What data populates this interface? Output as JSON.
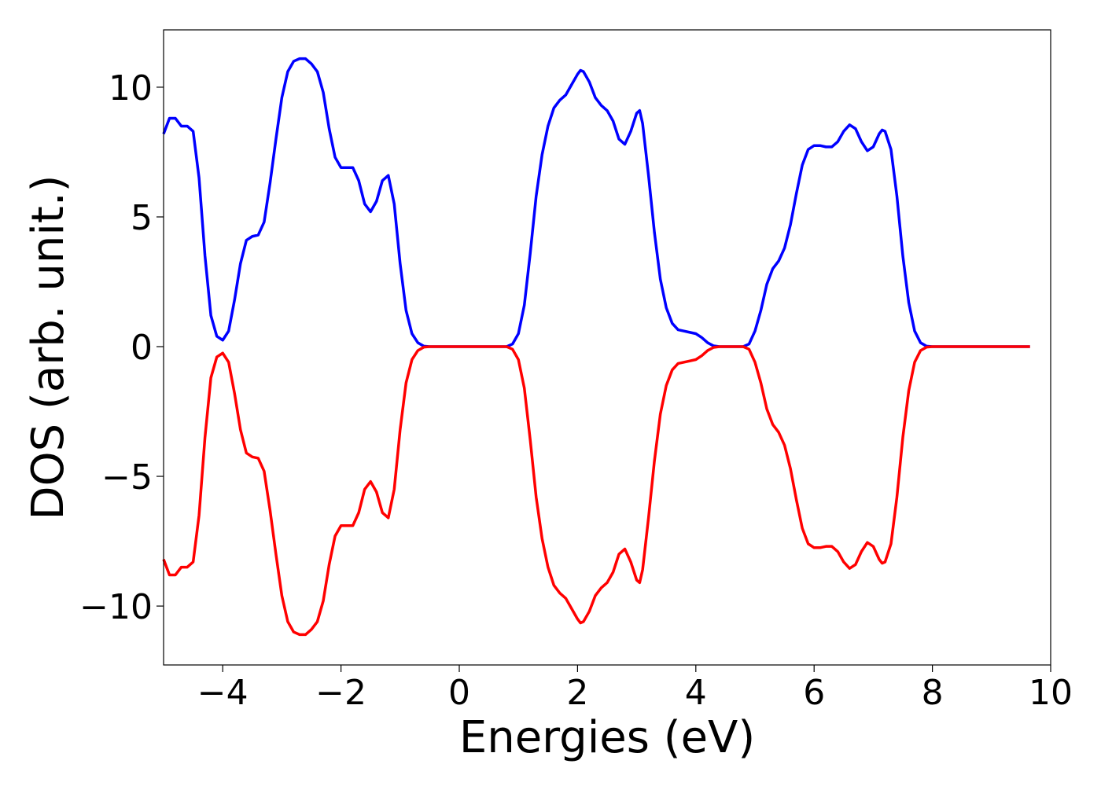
{
  "chart_data": {
    "type": "line",
    "xlabel": "Energies (eV)",
    "ylabel": "DOS (arb. unit.)",
    "x": [
      -5,
      -4.9,
      -4.8,
      -4.7,
      -4.6,
      -4.5,
      -4.4,
      -4.3,
      -4.2,
      -4.1,
      -4,
      -3.9,
      -3.8,
      -3.7,
      -3.6,
      -3.5,
      -3.4,
      -3.3,
      -3.2,
      -3.1,
      -3,
      -2.9,
      -2.8,
      -2.7,
      -2.6,
      -2.5,
      -2.4,
      -2.3,
      -2.2,
      -2.1,
      -2,
      -1.9,
      -1.8,
      -1.7,
      -1.6,
      -1.5,
      -1.4,
      -1.3,
      -1.2,
      -1.1,
      -1,
      -0.9,
      -0.8,
      -0.7,
      -0.6,
      -0.5,
      0.8,
      0.9,
      1,
      1.1,
      1.2,
      1.3,
      1.4,
      1.5,
      1.6,
      1.7,
      1.8,
      1.9,
      2,
      2.05,
      2.1,
      2.2,
      2.3,
      2.4,
      2.5,
      2.6,
      2.7,
      2.8,
      2.9,
      3,
      3.05,
      3.1,
      3.2,
      3.3,
      3.4,
      3.5,
      3.6,
      3.7,
      3.8,
      3.9,
      4,
      4.1,
      4.2,
      4.3,
      4.4,
      4.8,
      4.9,
      5,
      5.1,
      5.2,
      5.3,
      5.4,
      5.5,
      5.6,
      5.7,
      5.8,
      5.9,
      6,
      6.1,
      6.2,
      6.3,
      6.4,
      6.5,
      6.6,
      6.7,
      6.8,
      6.9,
      7,
      7.1,
      7.15,
      7.2,
      7.3,
      7.4,
      7.5,
      7.6,
      7.7,
      7.8,
      7.9,
      8,
      9.65
    ],
    "series": [
      {
        "color": "#0000ff",
        "values": [
          8.2,
          8.8,
          8.8,
          8.5,
          8.5,
          8.3,
          6.5,
          3.5,
          1.2,
          0.4,
          0.25,
          0.6,
          1.8,
          3.2,
          4.1,
          4.25,
          4.3,
          4.8,
          6.3,
          8,
          9.6,
          10.6,
          11,
          11.1,
          11.1,
          10.9,
          10.6,
          9.8,
          8.4,
          7.3,
          6.9,
          6.9,
          6.9,
          6.4,
          5.5,
          5.2,
          5.6,
          6.4,
          6.6,
          5.5,
          3.2,
          1.4,
          0.5,
          0.15,
          0.02,
          0,
          0,
          0.1,
          0.5,
          1.6,
          3.6,
          5.8,
          7.4,
          8.5,
          9.2,
          9.5,
          9.7,
          10.1,
          10.5,
          10.65,
          10.6,
          10.2,
          9.6,
          9.3,
          9.1,
          8.7,
          8,
          7.8,
          8.3,
          9,
          9.1,
          8.6,
          6.6,
          4.4,
          2.6,
          1.5,
          0.9,
          0.65,
          0.6,
          0.55,
          0.5,
          0.35,
          0.15,
          0.03,
          0,
          0,
          0.1,
          0.6,
          1.4,
          2.4,
          3,
          3.3,
          3.8,
          4.7,
          5.9,
          7,
          7.6,
          7.75,
          7.75,
          7.7,
          7.7,
          7.9,
          8.3,
          8.55,
          8.4,
          7.9,
          7.55,
          7.7,
          8.2,
          8.35,
          8.3,
          7.6,
          5.8,
          3.5,
          1.7,
          0.6,
          0.15,
          0.02,
          0,
          0
        ]
      },
      {
        "color": "#ff0000",
        "values": [
          -8.2,
          -8.8,
          -8.8,
          -8.5,
          -8.5,
          -8.3,
          -6.5,
          -3.5,
          -1.2,
          -0.4,
          -0.25,
          -0.6,
          -1.8,
          -3.2,
          -4.1,
          -4.25,
          -4.3,
          -4.8,
          -6.3,
          -8,
          -9.6,
          -10.6,
          -11,
          -11.1,
          -11.1,
          -10.9,
          -10.6,
          -9.8,
          -8.4,
          -7.3,
          -6.9,
          -6.9,
          -6.9,
          -6.4,
          -5.5,
          -5.2,
          -5.6,
          -6.4,
          -6.6,
          -5.5,
          -3.2,
          -1.4,
          -0.5,
          -0.15,
          -0.02,
          0,
          0,
          -0.1,
          -0.5,
          -1.6,
          -3.6,
          -5.8,
          -7.4,
          -8.5,
          -9.2,
          -9.5,
          -9.7,
          -10.1,
          -10.5,
          -10.65,
          -10.6,
          -10.2,
          -9.6,
          -9.3,
          -9.1,
          -8.7,
          -8,
          -7.8,
          -8.3,
          -9,
          -9.1,
          -8.6,
          -6.6,
          -4.4,
          -2.6,
          -1.5,
          -0.9,
          -0.65,
          -0.6,
          -0.55,
          -0.5,
          -0.35,
          -0.15,
          -0.03,
          0,
          0,
          -0.1,
          -0.6,
          -1.4,
          -2.4,
          -3,
          -3.3,
          -3.8,
          -4.7,
          -5.9,
          -7,
          -7.6,
          -7.75,
          -7.75,
          -7.7,
          -7.7,
          -7.9,
          -8.3,
          -8.55,
          -8.4,
          -7.9,
          -7.55,
          -7.7,
          -8.2,
          -8.35,
          -8.3,
          -7.6,
          -5.8,
          -3.5,
          -1.7,
          -0.6,
          -0.15,
          -0.02,
          0,
          0
        ]
      }
    ],
    "xlim": [
      -5,
      10
    ],
    "xticks": [
      {
        "value": -4,
        "label": "−4"
      },
      {
        "value": -2,
        "label": "−2"
      },
      0,
      2,
      4,
      6,
      8,
      10
    ],
    "ylim": [
      -12.27,
      12.21
    ],
    "yticks": [
      {
        "value": -10,
        "label": "−10"
      },
      {
        "value": -5,
        "label": "−5"
      },
      0,
      5,
      10
    ],
    "grid": false
  }
}
